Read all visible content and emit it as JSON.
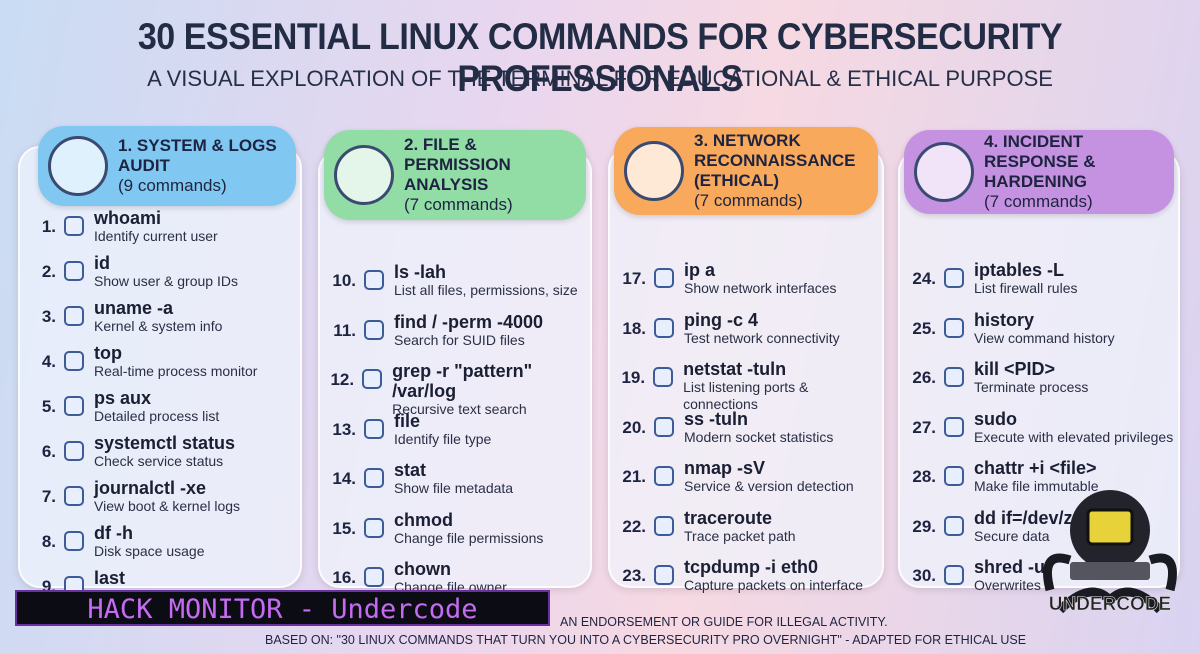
{
  "header": {
    "title": "30 ESSENTIAL LINUX COMMANDS FOR CYBERSECURITY PROFESSIONALS",
    "subtitle": "A VISUAL EXPLORATION OF THE TERMINAL FOR EDUCATIONAL & ETHICAL PURPOSE"
  },
  "columns": [
    {
      "title": "1. SYSTEM & LOGS AUDIT",
      "count": "(9 commands)",
      "items": [
        {
          "number": "1.",
          "command": "whoami",
          "description": "Identify current user"
        },
        {
          "number": "2.",
          "command": "id",
          "description": "Show user & group IDs"
        },
        {
          "number": "3.",
          "command": "uname -a",
          "description": "Kernel & system info"
        },
        {
          "number": "4.",
          "command": "top",
          "description": "Real-time process monitor"
        },
        {
          "number": "5.",
          "command": "ps aux",
          "description": "Detailed process list"
        },
        {
          "number": "6.",
          "command": "systemctl status",
          "description": "Check service status"
        },
        {
          "number": "7.",
          "command": "journalctl -xe",
          "description": "View boot & kernel logs"
        },
        {
          "number": "8.",
          "command": "df -h",
          "description": "Disk space usage"
        },
        {
          "number": "9.",
          "command": "last"
        }
      ]
    },
    {
      "title": "2. FILE & PERMISSION ANALYSIS",
      "count": "(7 commands)",
      "items": [
        {
          "number": "10.",
          "command": "ls -lah",
          "description": "List all files, permissions, size"
        },
        {
          "number": "11.",
          "command": "find / -perm -4000",
          "description": "Search for SUID files"
        },
        {
          "number": "12.",
          "command": "grep -r \"pattern\" /var/log",
          "description": "Recursive text search"
        },
        {
          "number": "13.",
          "command": "file",
          "description": "Identify file type"
        },
        {
          "number": "14.",
          "command": "stat",
          "description": "Show file metadata"
        },
        {
          "number": "15.",
          "command": "chmod",
          "description": "Change file permissions"
        },
        {
          "number": "16.",
          "command": "chown",
          "description": "Change file owner"
        }
      ]
    },
    {
      "title": "3. NETWORK RECONNAISSANCE (ETHICAL)",
      "count": "(7 commands)",
      "items": [
        {
          "number": "17.",
          "command": "ip a",
          "description": "Show network interfaces"
        },
        {
          "number": "18.",
          "command": "ping -c 4",
          "description": "Test network connectivity"
        },
        {
          "number": "19.",
          "command": "netstat -tuln",
          "description": "List listening ports & connections"
        },
        {
          "number": "20.",
          "command": "ss -tuln",
          "description": "Modern socket statistics"
        },
        {
          "number": "21.",
          "command": "nmap -sV",
          "description": "Service & version detection"
        },
        {
          "number": "22.",
          "command": "traceroute",
          "description": "Trace packet path"
        },
        {
          "number": "23.",
          "command": "tcpdump -i eth0",
          "description": "Capture packets on interface"
        }
      ]
    },
    {
      "title": "4. INCIDENT RESPONSE & HARDENING",
      "count": "(7 commands)",
      "items": [
        {
          "number": "24.",
          "command": "iptables -L",
          "description": "List firewall rules"
        },
        {
          "number": "25.",
          "command": "history",
          "description": "View command history"
        },
        {
          "number": "26.",
          "command": "kill <PID>",
          "description": "Terminate process"
        },
        {
          "number": "27.",
          "command": "sudo",
          "description": "Execute with elevated privileges"
        },
        {
          "number": "28.",
          "command": "chattr +i <file>",
          "description": "Make file immutable"
        },
        {
          "number": "29.",
          "command": "dd if=/dev/z",
          "description": "Secure data"
        },
        {
          "number": "30.",
          "command": "shred -u",
          "description": "Overwrites"
        }
      ]
    }
  ],
  "footer": {
    "disclaimer": "AN ENDORSEMENT OR GUIDE FOR ILLEGAL ACTIVITY.",
    "source": "BASED ON: \"30 LINUX COMMANDS THAT TURN YOU INTO A CYBERSECURITY PRO OVERNIGHT\" - ADAPTED FOR ETHICAL USE",
    "banner": "HACK MONITOR - Undercode",
    "logo": "UNDERCODE"
  }
}
